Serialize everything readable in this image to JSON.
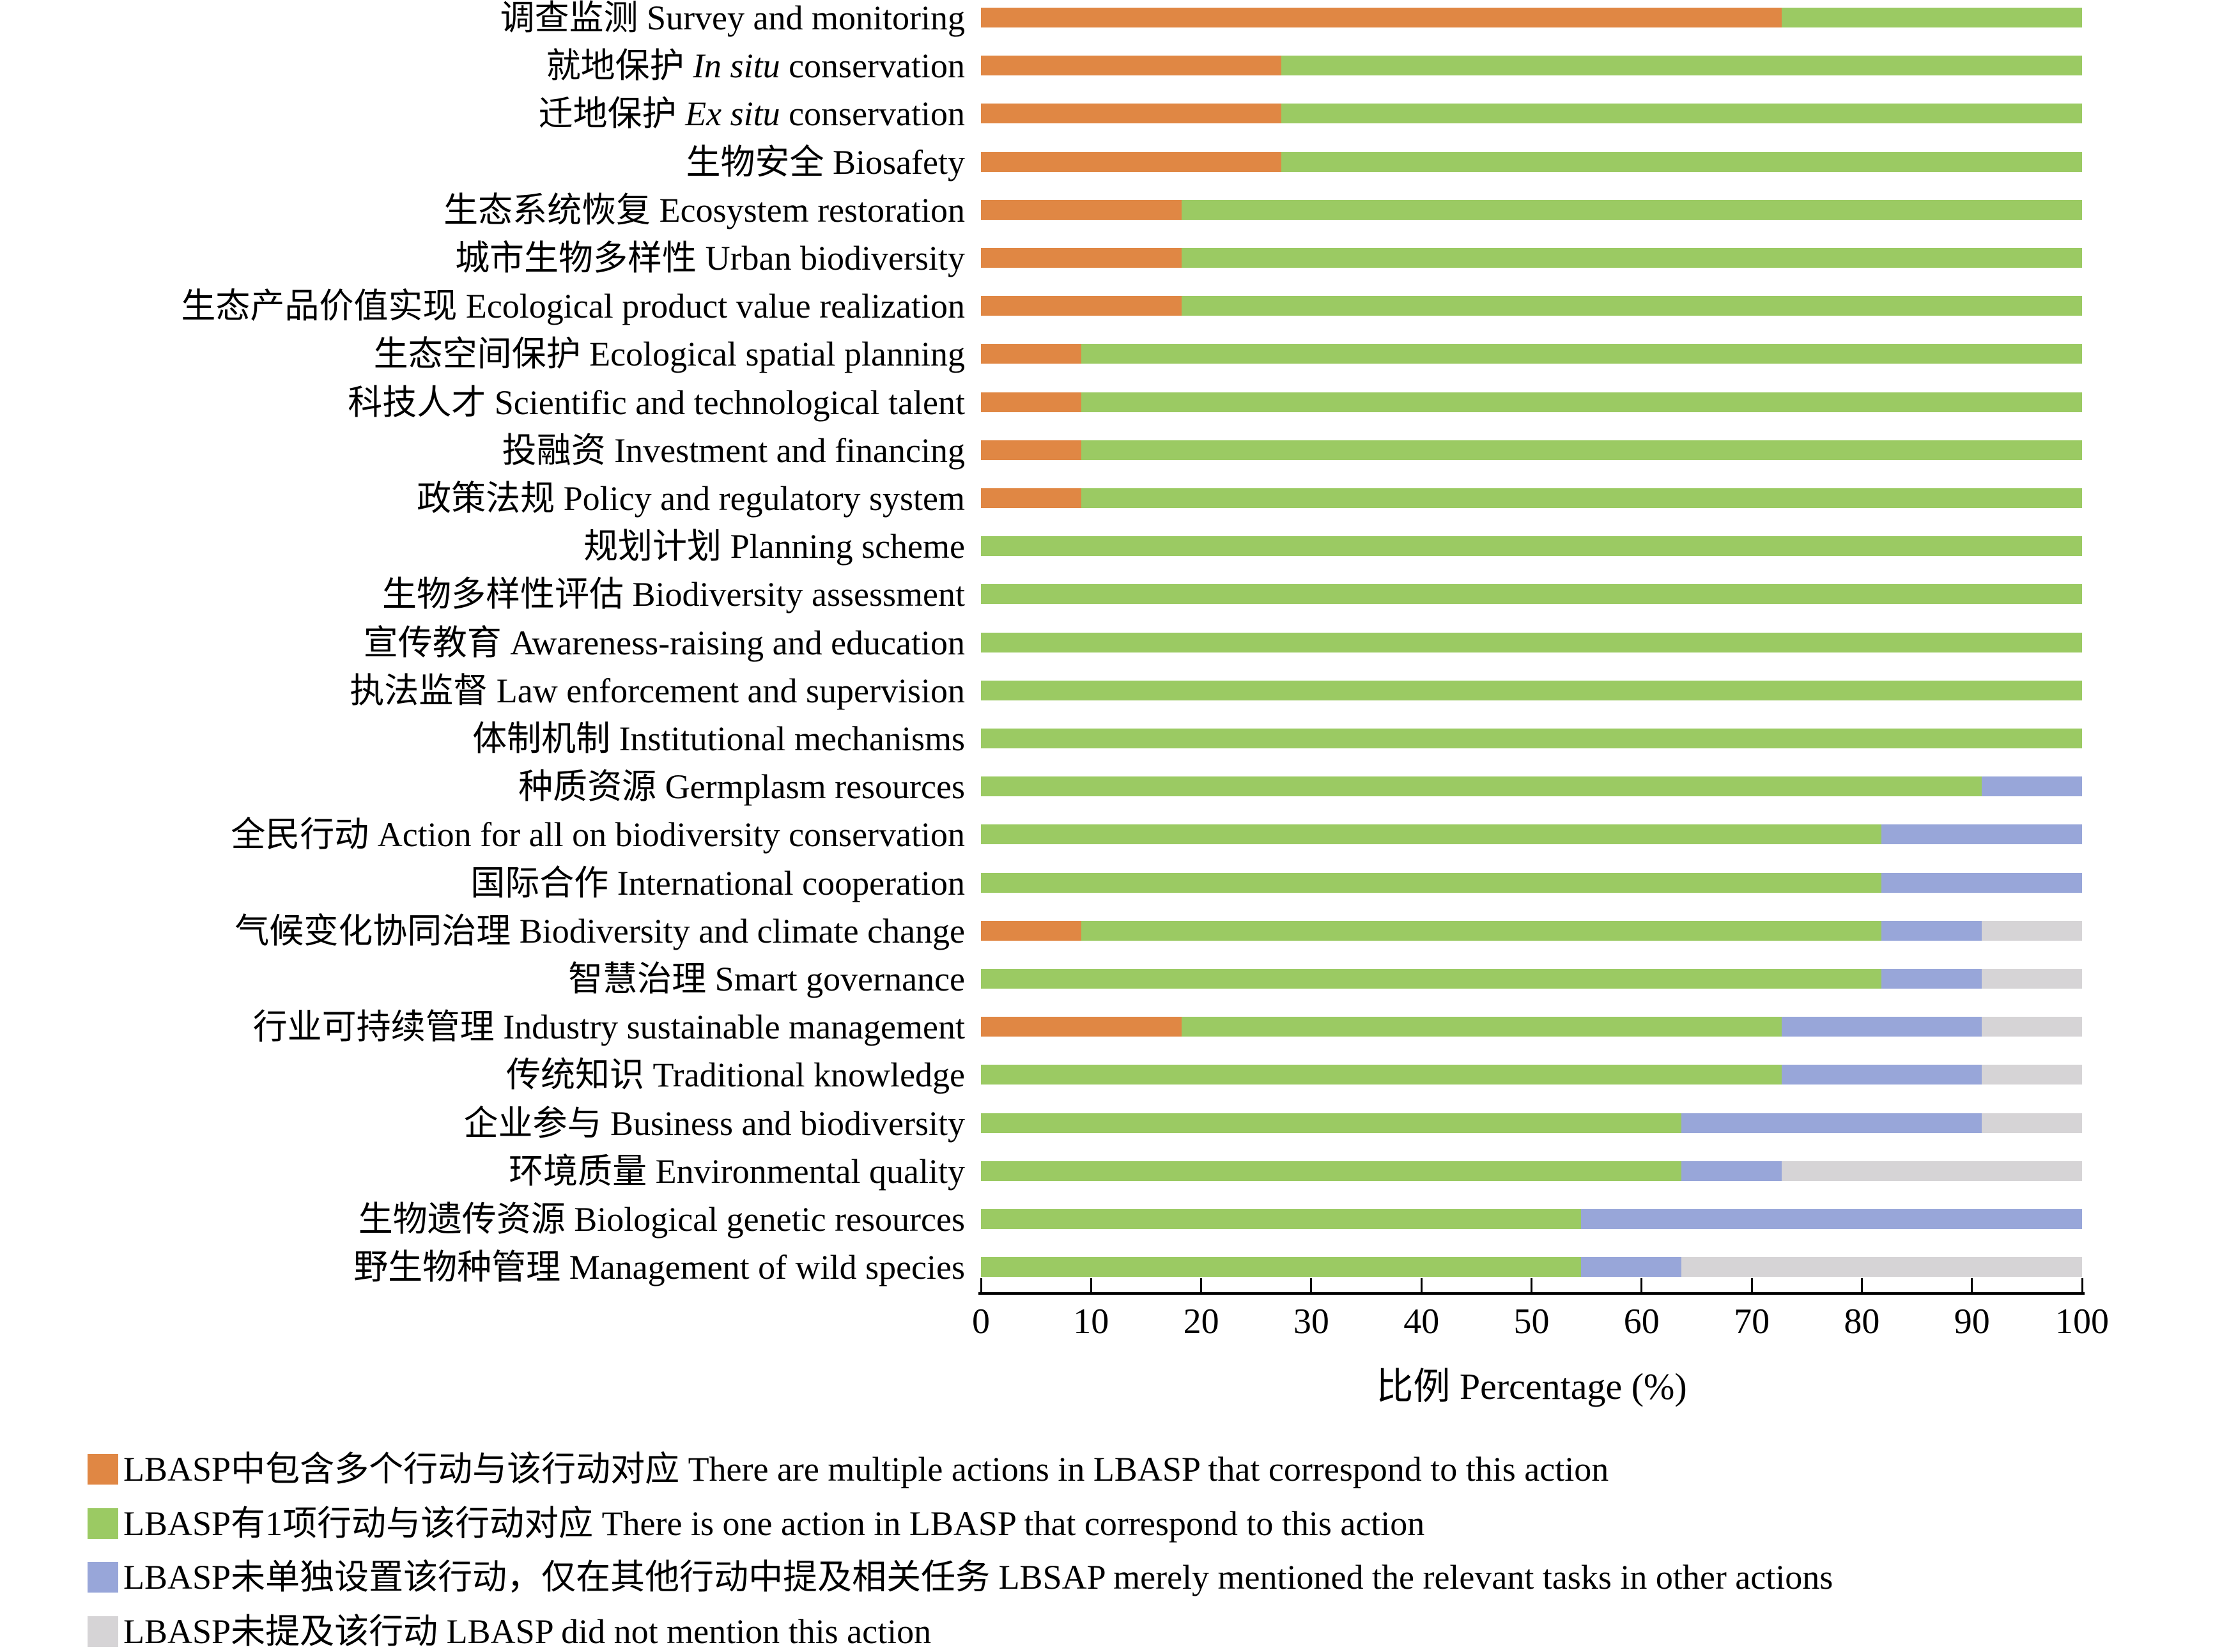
{
  "chart_data": {
    "type": "bar",
    "orientation": "horizontal-stacked",
    "title": "",
    "xlabel": "比例 Percentage (%)",
    "xlim": [
      0,
      100
    ],
    "xticks": [
      "0",
      "10",
      "20",
      "30",
      "40",
      "50",
      "60",
      "70",
      "80",
      "90",
      "100"
    ],
    "grid": false,
    "legend_position": "bottom-left",
    "categories": [
      {
        "zh": "调查监测",
        "it": "",
        "en": "Survey and monitoring"
      },
      {
        "zh": "就地保护",
        "it": "In situ",
        "en": "conservation"
      },
      {
        "zh": "迁地保护",
        "it": "Ex situ",
        "en": "conservation"
      },
      {
        "zh": "生物安全",
        "it": "",
        "en": "Biosafety"
      },
      {
        "zh": "生态系统恢复",
        "it": "",
        "en": "Ecosystem restoration"
      },
      {
        "zh": "城市生物多样性",
        "it": "",
        "en": "Urban biodiversity"
      },
      {
        "zh": "生态产品价值实现",
        "it": "",
        "en": "Ecological product value realization"
      },
      {
        "zh": "生态空间保护",
        "it": "",
        "en": "Ecological spatial planning"
      },
      {
        "zh": "科技人才",
        "it": "",
        "en": "Scientific and technological talent"
      },
      {
        "zh": "投融资",
        "it": "",
        "en": "Investment and financing"
      },
      {
        "zh": "政策法规",
        "it": "",
        "en": "Policy and regulatory system"
      },
      {
        "zh": "规划计划",
        "it": "",
        "en": "Planning scheme"
      },
      {
        "zh": "生物多样性评估",
        "it": "",
        "en": "Biodiversity assessment"
      },
      {
        "zh": "宣传教育",
        "it": "",
        "en": "Awareness-raising and education"
      },
      {
        "zh": "执法监督",
        "it": "",
        "en": "Law enforcement and supervision"
      },
      {
        "zh": "体制机制",
        "it": "",
        "en": "Institutional mechanisms"
      },
      {
        "zh": "种质资源",
        "it": "",
        "en": "Germplasm resources"
      },
      {
        "zh": "全民行动",
        "it": "",
        "en": "Action for all on biodiversity conservation"
      },
      {
        "zh": "国际合作",
        "it": "",
        "en": "International cooperation"
      },
      {
        "zh": "气候变化协同治理",
        "it": "",
        "en": "Biodiversity and climate change"
      },
      {
        "zh": "智慧治理",
        "it": "",
        "en": "Smart governance"
      },
      {
        "zh": "行业可持续管理",
        "it": "",
        "en": "Industry sustainable management"
      },
      {
        "zh": "传统知识",
        "it": "",
        "en": "Traditional knowledge"
      },
      {
        "zh": "企业参与",
        "it": "",
        "en": "Business and biodiversity"
      },
      {
        "zh": "环境质量",
        "it": "",
        "en": "Environmental quality"
      },
      {
        "zh": "生物遗传资源",
        "it": "",
        "en": "Biological genetic resources"
      },
      {
        "zh": "野生物种管理",
        "it": "",
        "en": "Management of wild species"
      }
    ],
    "series": [
      {
        "name_zh": "LBASP中包含多个行动与该行动对应",
        "name_en": "There are multiple actions in LBASP that correspond to this action",
        "color": "#E08744",
        "values": [
          72.7,
          27.3,
          27.3,
          27.3,
          18.2,
          18.2,
          18.2,
          9.1,
          9.1,
          9.1,
          9.1,
          0,
          0,
          0,
          0,
          0,
          0,
          0,
          0,
          9.1,
          0,
          18.2,
          0,
          0,
          0,
          0,
          0
        ]
      },
      {
        "name_zh": "LBASP有1项行动与该行动对应",
        "name_en": "There is one action in LBASP that correspond to this action",
        "color": "#9BCA63",
        "values": [
          27.3,
          72.7,
          72.7,
          72.7,
          81.8,
          81.8,
          81.8,
          90.9,
          90.9,
          90.9,
          90.9,
          100,
          100,
          100,
          100,
          100,
          90.9,
          81.8,
          81.8,
          72.7,
          81.8,
          54.5,
          72.7,
          63.6,
          63.6,
          54.5,
          54.5
        ]
      },
      {
        "name_zh": "LBASP未单独设置该行动，仅在其他行动中提及相关任务",
        "name_en": "LBSAP merely mentioned the relevant tasks in other actions",
        "color": "#98A6D9",
        "values": [
          0,
          0,
          0,
          0,
          0,
          0,
          0,
          0,
          0,
          0,
          0,
          0,
          0,
          0,
          0,
          0,
          9.1,
          18.2,
          18.2,
          9.1,
          9.1,
          18.2,
          18.2,
          27.3,
          9.1,
          45.5,
          9.1
        ]
      },
      {
        "name_zh": "LBASP未提及该行动",
        "name_en": "LBASP did not mention this action",
        "color": "#D6D4D6",
        "values": [
          0,
          0,
          0,
          0,
          0,
          0,
          0,
          0,
          0,
          0,
          0,
          0,
          0,
          0,
          0,
          0,
          0,
          0,
          0,
          9.1,
          9.1,
          9.1,
          9.1,
          9.1,
          27.3,
          0,
          36.4
        ]
      }
    ]
  }
}
